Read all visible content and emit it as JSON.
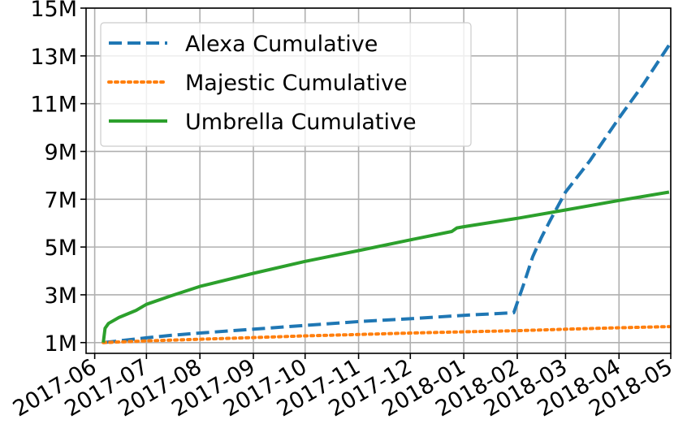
{
  "chart_data": {
    "type": "line",
    "title": "",
    "xlabel": "",
    "ylabel": "",
    "x_ticks": [
      "2017-06",
      "2017-07",
      "2017-08",
      "2017-09",
      "2017-10",
      "2017-11",
      "2017-12",
      "2018-01",
      "2018-02",
      "2018-03",
      "2018-04",
      "2018-05"
    ],
    "y_ticks": [
      "1M",
      "3M",
      "5M",
      "7M",
      "9M",
      "11M",
      "13M",
      "15M"
    ],
    "y_tick_values": [
      1,
      3,
      5,
      7,
      9,
      11,
      13,
      15
    ],
    "xlim": [
      "2017-05-27",
      "2018-05-01"
    ],
    "ylim_millions": [
      0.55,
      15
    ],
    "grid": true,
    "legend_position": "top-left",
    "series": [
      {
        "name": "Alexa Cumulative",
        "color": "#1f77b4",
        "style": "dashed",
        "x": [
          "2017-06-06",
          "2017-06-15",
          "2017-07-01",
          "2017-07-15",
          "2017-08-01",
          "2017-09-01",
          "2017-10-01",
          "2017-11-01",
          "2017-12-01",
          "2018-01-01",
          "2018-01-30",
          "2018-02-05",
          "2018-02-10",
          "2018-02-15",
          "2018-02-20",
          "2018-03-01",
          "2018-03-15",
          "2018-04-01",
          "2018-04-15",
          "2018-04-30"
        ],
        "y": [
          1.0,
          1.07,
          1.2,
          1.3,
          1.4,
          1.56,
          1.72,
          1.88,
          2.0,
          2.14,
          2.25,
          3.5,
          4.6,
          5.4,
          6.1,
          7.3,
          8.6,
          10.4,
          11.8,
          13.45
        ]
      },
      {
        "name": "Majestic Cumulative",
        "color": "#ff7f0e",
        "style": "dotted",
        "x": [
          "2017-06-06",
          "2017-07-01",
          "2017-08-01",
          "2017-09-01",
          "2017-10-01",
          "2017-11-01",
          "2017-12-01",
          "2018-01-01",
          "2018-02-01",
          "2018-03-01",
          "2018-04-01",
          "2018-04-30"
        ],
        "y": [
          1.0,
          1.07,
          1.14,
          1.21,
          1.28,
          1.34,
          1.4,
          1.45,
          1.5,
          1.56,
          1.62,
          1.67
        ]
      },
      {
        "name": "Umbrella Cumulative",
        "color": "#2ca02c",
        "style": "solid",
        "x": [
          "2017-06-06",
          "2017-06-07",
          "2017-06-09",
          "2017-06-15",
          "2017-06-25",
          "2017-07-01",
          "2017-07-15",
          "2017-08-01",
          "2017-09-01",
          "2017-10-01",
          "2017-11-01",
          "2017-12-01",
          "2017-12-25",
          "2017-12-28",
          "2018-01-01",
          "2018-02-01",
          "2018-03-01",
          "2018-04-01",
          "2018-04-30"
        ],
        "y": [
          1.0,
          1.6,
          1.8,
          2.05,
          2.35,
          2.6,
          2.95,
          3.35,
          3.9,
          4.4,
          4.85,
          5.3,
          5.65,
          5.8,
          5.85,
          6.2,
          6.55,
          6.95,
          7.3
        ]
      }
    ]
  }
}
